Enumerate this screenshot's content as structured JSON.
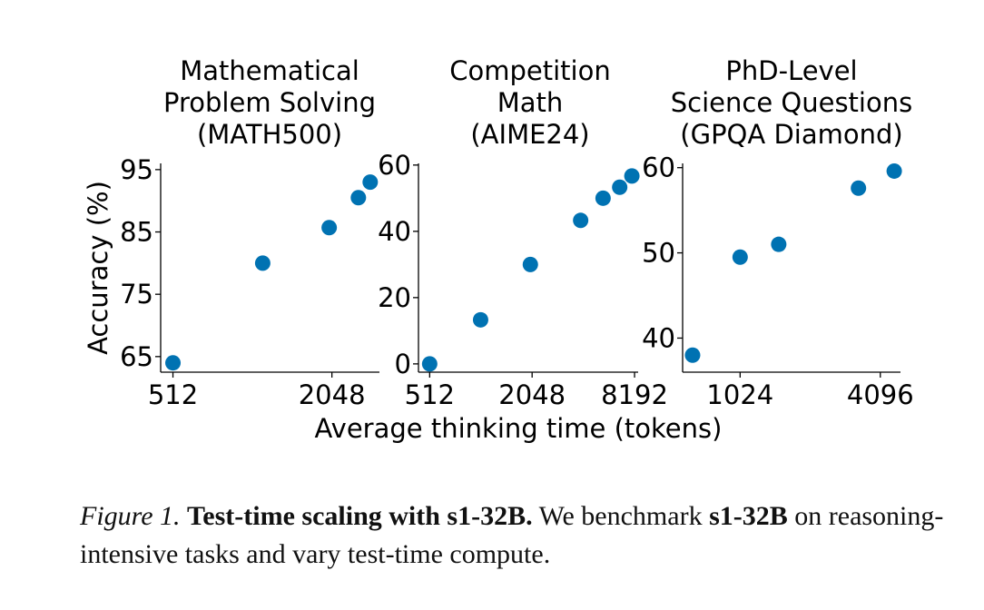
{
  "chart_data": [
    {
      "type": "scatter",
      "title_lines": [
        "Mathematical",
        "Problem Solving",
        "(MATH500)"
      ],
      "ylabel": "Accuracy (%)",
      "xscale": "log2",
      "ylim": [
        62.5,
        96
      ],
      "xlim": [
        460,
        3100
      ],
      "yticks": [
        65,
        75,
        85,
        95
      ],
      "xticks": [
        512,
        2048
      ],
      "xticklabels": [
        "512",
        "2048"
      ],
      "color": "#0072b2",
      "x": [
        512,
        1120,
        2000,
        2580,
        2860
      ],
      "y": [
        64.0,
        80.0,
        85.7,
        90.5,
        93.0
      ]
    },
    {
      "type": "scatter",
      "title_lines": [
        "Competition",
        "Math",
        "(AIME24)"
      ],
      "ylabel": "",
      "xscale": "log2",
      "ylim": [
        -2.5,
        60.5
      ],
      "xlim": [
        440,
        8600
      ],
      "yticks": [
        0,
        20,
        40,
        60
      ],
      "xticks": [
        512,
        2048,
        8192
      ],
      "xticklabels": [
        "512",
        "2048",
        "8192"
      ],
      "color": "#0072b2",
      "x": [
        512,
        1020,
        2000,
        3950,
        5350,
        6700,
        7900
      ],
      "y": [
        0.0,
        13.3,
        30.0,
        43.3,
        50.0,
        53.3,
        56.7
      ]
    },
    {
      "type": "scatter",
      "title_lines": [
        "PhD-Level",
        "Science Questions",
        "(GPQA Diamond)"
      ],
      "ylabel": "",
      "xscale": "log2",
      "ylim": [
        36,
        60.5
      ],
      "xlim": [
        580,
        5000
      ],
      "yticks": [
        40,
        50,
        60
      ],
      "xticks": [
        1024,
        4096
      ],
      "xticklabels": [
        "1024",
        "4096"
      ],
      "color": "#0072b2",
      "x": [
        640,
        1024,
        1500,
        3300,
        4700
      ],
      "y": [
        38.0,
        49.5,
        51.0,
        57.6,
        59.6
      ]
    }
  ],
  "xlabel_shared": "Average thinking time (tokens)",
  "caption": {
    "label": "Figure 1.",
    "bold_title": "Test-time scaling with s1-32B.",
    "text_pre": " We benchmark ",
    "model": "s1-32B",
    "text_post": " on reasoning-intensive tasks and vary test-time compute."
  }
}
